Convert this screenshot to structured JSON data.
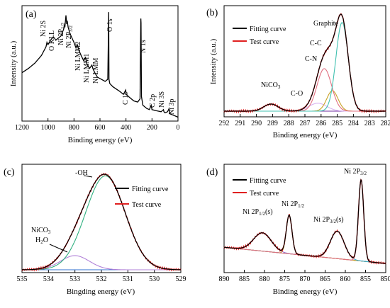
{
  "chart_data": [
    {
      "panel": "(a)",
      "type": "line",
      "xlabel": "Binding energy (eV)",
      "ylabel": "Intensity (a.u.)",
      "xlim": [
        1200,
        0
      ],
      "xticks": [
        "1200",
        "1000",
        "800",
        "600",
        "400",
        "200",
        "0"
      ],
      "series": [
        {
          "color": "#000000",
          "x": [
            1200,
            1150,
            1100,
            1050,
            1015,
            1008,
            1000,
            980,
            960,
            950,
            940,
            900,
            880,
            874,
            870,
            862,
            856,
            852,
            845,
            830,
            800,
            785,
            775,
            760,
            745,
            725,
            712,
            700,
            680,
            662,
            655,
            640,
            620,
            560,
            540,
            533,
            531,
            525,
            500,
            450,
            420,
            402,
            398,
            380,
            340,
            310,
            292,
            286,
            284,
            281,
            270,
            240,
            220,
            206,
            200,
            170,
            130,
            112,
            108,
            100,
            80,
            68,
            65,
            60,
            40,
            20,
            0
          ],
          "y": [
            42,
            46,
            51,
            58,
            66,
            70,
            68,
            72,
            75,
            74,
            72,
            76,
            82,
            86,
            84,
            95,
            87,
            90,
            84,
            78,
            70,
            65,
            68,
            62,
            58,
            53,
            56,
            50,
            46,
            49,
            46,
            42,
            38,
            34,
            36,
            98,
            36,
            32,
            29,
            25,
            22,
            26,
            22,
            20,
            16,
            15,
            18,
            92,
            88,
            20,
            12,
            9,
            8,
            12,
            8,
            7,
            6,
            8,
            6,
            5,
            6,
            9,
            6,
            4,
            3,
            2,
            1
          ]
        }
      ],
      "annotations": [
        "Ni 2S",
        "O KLL",
        "Ni 2P1/2",
        "Ni 2P3/2",
        "Ni LMM2",
        "Ni LMM1",
        "Ni LMM",
        "O 1s",
        "C 1s",
        "N 1s",
        "C 2p",
        "Ni 3S",
        "Ni 3p"
      ]
    },
    {
      "panel": "(b)",
      "type": "line",
      "xlabel": "Binding energy (eV)",
      "ylabel": "Intensity (a.u.)",
      "xlim": [
        292,
        282
      ],
      "xticks": [
        "292",
        "291",
        "290",
        "289",
        "288",
        "287",
        "286",
        "285",
        "284",
        "283",
        "282"
      ],
      "legend": [
        "Fitting curve",
        "Test curve"
      ],
      "annotations": [
        "Graphite",
        "C-C",
        "C-N",
        "C-O",
        "NiCO3"
      ],
      "peaks": [
        {
          "label": "NiCO3",
          "center": 289.1,
          "height": 8,
          "width": 0.45,
          "color": "#7030a0"
        },
        {
          "label": "C-O",
          "center": 286.2,
          "height": 9,
          "width": 0.55,
          "color": "#d8b4f0"
        },
        {
          "label": "C-N",
          "center": 285.3,
          "height": 23,
          "width": 0.35,
          "color": "#c9a227"
        },
        {
          "label": "C-C",
          "center": 285.8,
          "height": 48,
          "width": 0.45,
          "color": "#e07080"
        },
        {
          "label": "Graphite",
          "center": 284.7,
          "height": 100,
          "width": 0.38,
          "color": "#40c0b0"
        }
      ],
      "baseline": 0
    },
    {
      "panel": "(c)",
      "type": "line",
      "xlabel": "Bingding energy (eV)",
      "xlim": [
        535,
        529
      ],
      "xticks": [
        "535",
        "534",
        "533",
        "532",
        "531",
        "530",
        "529"
      ],
      "legend": [
        "Fitting curve",
        "Test curve"
      ],
      "annotations": [
        "-OH",
        "NiCO3",
        "H2O"
      ],
      "peaks": [
        {
          "label": "NiCO3 H2O",
          "center": 533.0,
          "height": 15,
          "width": 0.55,
          "color": "#b080d8"
        },
        {
          "label": "-OH",
          "center": 531.85,
          "height": 100,
          "width": 0.75,
          "color": "#30b080"
        }
      ],
      "baseline": 0
    },
    {
      "panel": "(d)",
      "type": "line",
      "xlabel": "Binding energy (eV)",
      "xlim": [
        890,
        850
      ],
      "xticks": [
        "890",
        "885",
        "880",
        "875",
        "870",
        "865",
        "860",
        "855",
        "850"
      ],
      "legend": [
        "Fitting curve",
        "Test curve"
      ],
      "annotations": [
        "Ni 2P1/2(s)",
        "Ni 2P1/2",
        "Ni 2P3/2(s)",
        "Ni 2P3/2"
      ],
      "peaks": [
        {
          "label": "Ni 2P1/2(s)",
          "center": 880.5,
          "height": 18,
          "width": 2.2,
          "color": "#9b6fc8"
        },
        {
          "label": "Ni 2P1/2",
          "center": 873.9,
          "height": 38,
          "width": 0.7,
          "color": "#c8a020"
        },
        {
          "label": "Ni 2P3/2(s)",
          "center": 862.0,
          "height": 27,
          "width": 1.7,
          "color": "#3aa8c8"
        },
        {
          "label": "Ni 2P3/2",
          "center": 856.1,
          "height": 80,
          "width": 0.65,
          "color": "#e07080"
        }
      ],
      "baseline_from": 18,
      "baseline_to": 2
    }
  ]
}
